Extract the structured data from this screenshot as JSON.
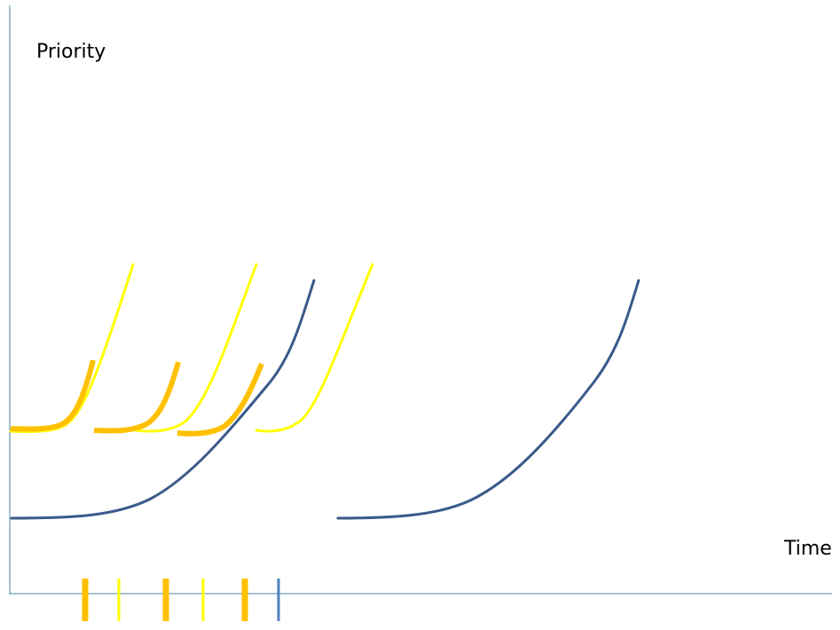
{
  "labels": {
    "y_axis": "Priority",
    "x_axis": "Time"
  },
  "colors": {
    "axis": "#4a86a8",
    "dark_blue": "#3a5a8a",
    "yellow": "#ffff00",
    "orange": "#ffc000",
    "tick_blue": "#4f81bd"
  },
  "curves": [
    {
      "name": "yellow-curve-1",
      "color": "yellow"
    },
    {
      "name": "orange-curve-1",
      "color": "orange"
    },
    {
      "name": "yellow-curve-2",
      "color": "yellow"
    },
    {
      "name": "orange-curve-2",
      "color": "orange"
    },
    {
      "name": "yellow-curve-3",
      "color": "yellow"
    },
    {
      "name": "orange-curve-3",
      "color": "orange"
    },
    {
      "name": "dark-blue-curve-1",
      "color": "dark_blue"
    },
    {
      "name": "dark-blue-curve-2",
      "color": "dark_blue"
    }
  ],
  "ticks": [
    {
      "name": "orange-tick-1",
      "color": "orange"
    },
    {
      "name": "yellow-tick-1",
      "color": "yellow"
    },
    {
      "name": "orange-tick-2",
      "color": "orange"
    },
    {
      "name": "yellow-tick-2",
      "color": "yellow"
    },
    {
      "name": "orange-tick-3",
      "color": "orange"
    },
    {
      "name": "blue-tick-1",
      "color": "tick_blue"
    }
  ]
}
